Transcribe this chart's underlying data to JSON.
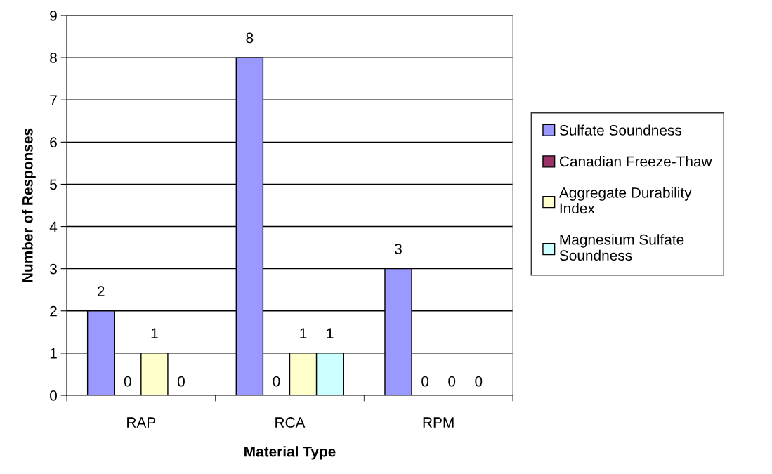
{
  "chart_data": {
    "type": "bar",
    "xlabel": "Material Type",
    "ylabel": "Number of Responses",
    "categories": [
      "RAP",
      "RCA",
      "RPM"
    ],
    "series": [
      {
        "name": "Sulfate Soundness",
        "color": "#9999ff",
        "values": [
          2,
          8,
          3
        ]
      },
      {
        "name": "Canadian Freeze-Thaw",
        "color": "#993366",
        "values": [
          0,
          0,
          0
        ]
      },
      {
        "name": "Aggregate Durability\nIndex",
        "color": "#ffffcc",
        "values": [
          1,
          1,
          0
        ]
      },
      {
        "name": "Magnesium Sulfate\nSoundness",
        "color": "#ccffff",
        "values": [
          0,
          1,
          0
        ]
      }
    ],
    "ylim": [
      0,
      9
    ],
    "yticks": [
      0,
      1,
      2,
      3,
      4,
      5,
      6,
      7,
      8,
      9
    ],
    "grid": "y",
    "legend": "right",
    "data_labels": true
  }
}
